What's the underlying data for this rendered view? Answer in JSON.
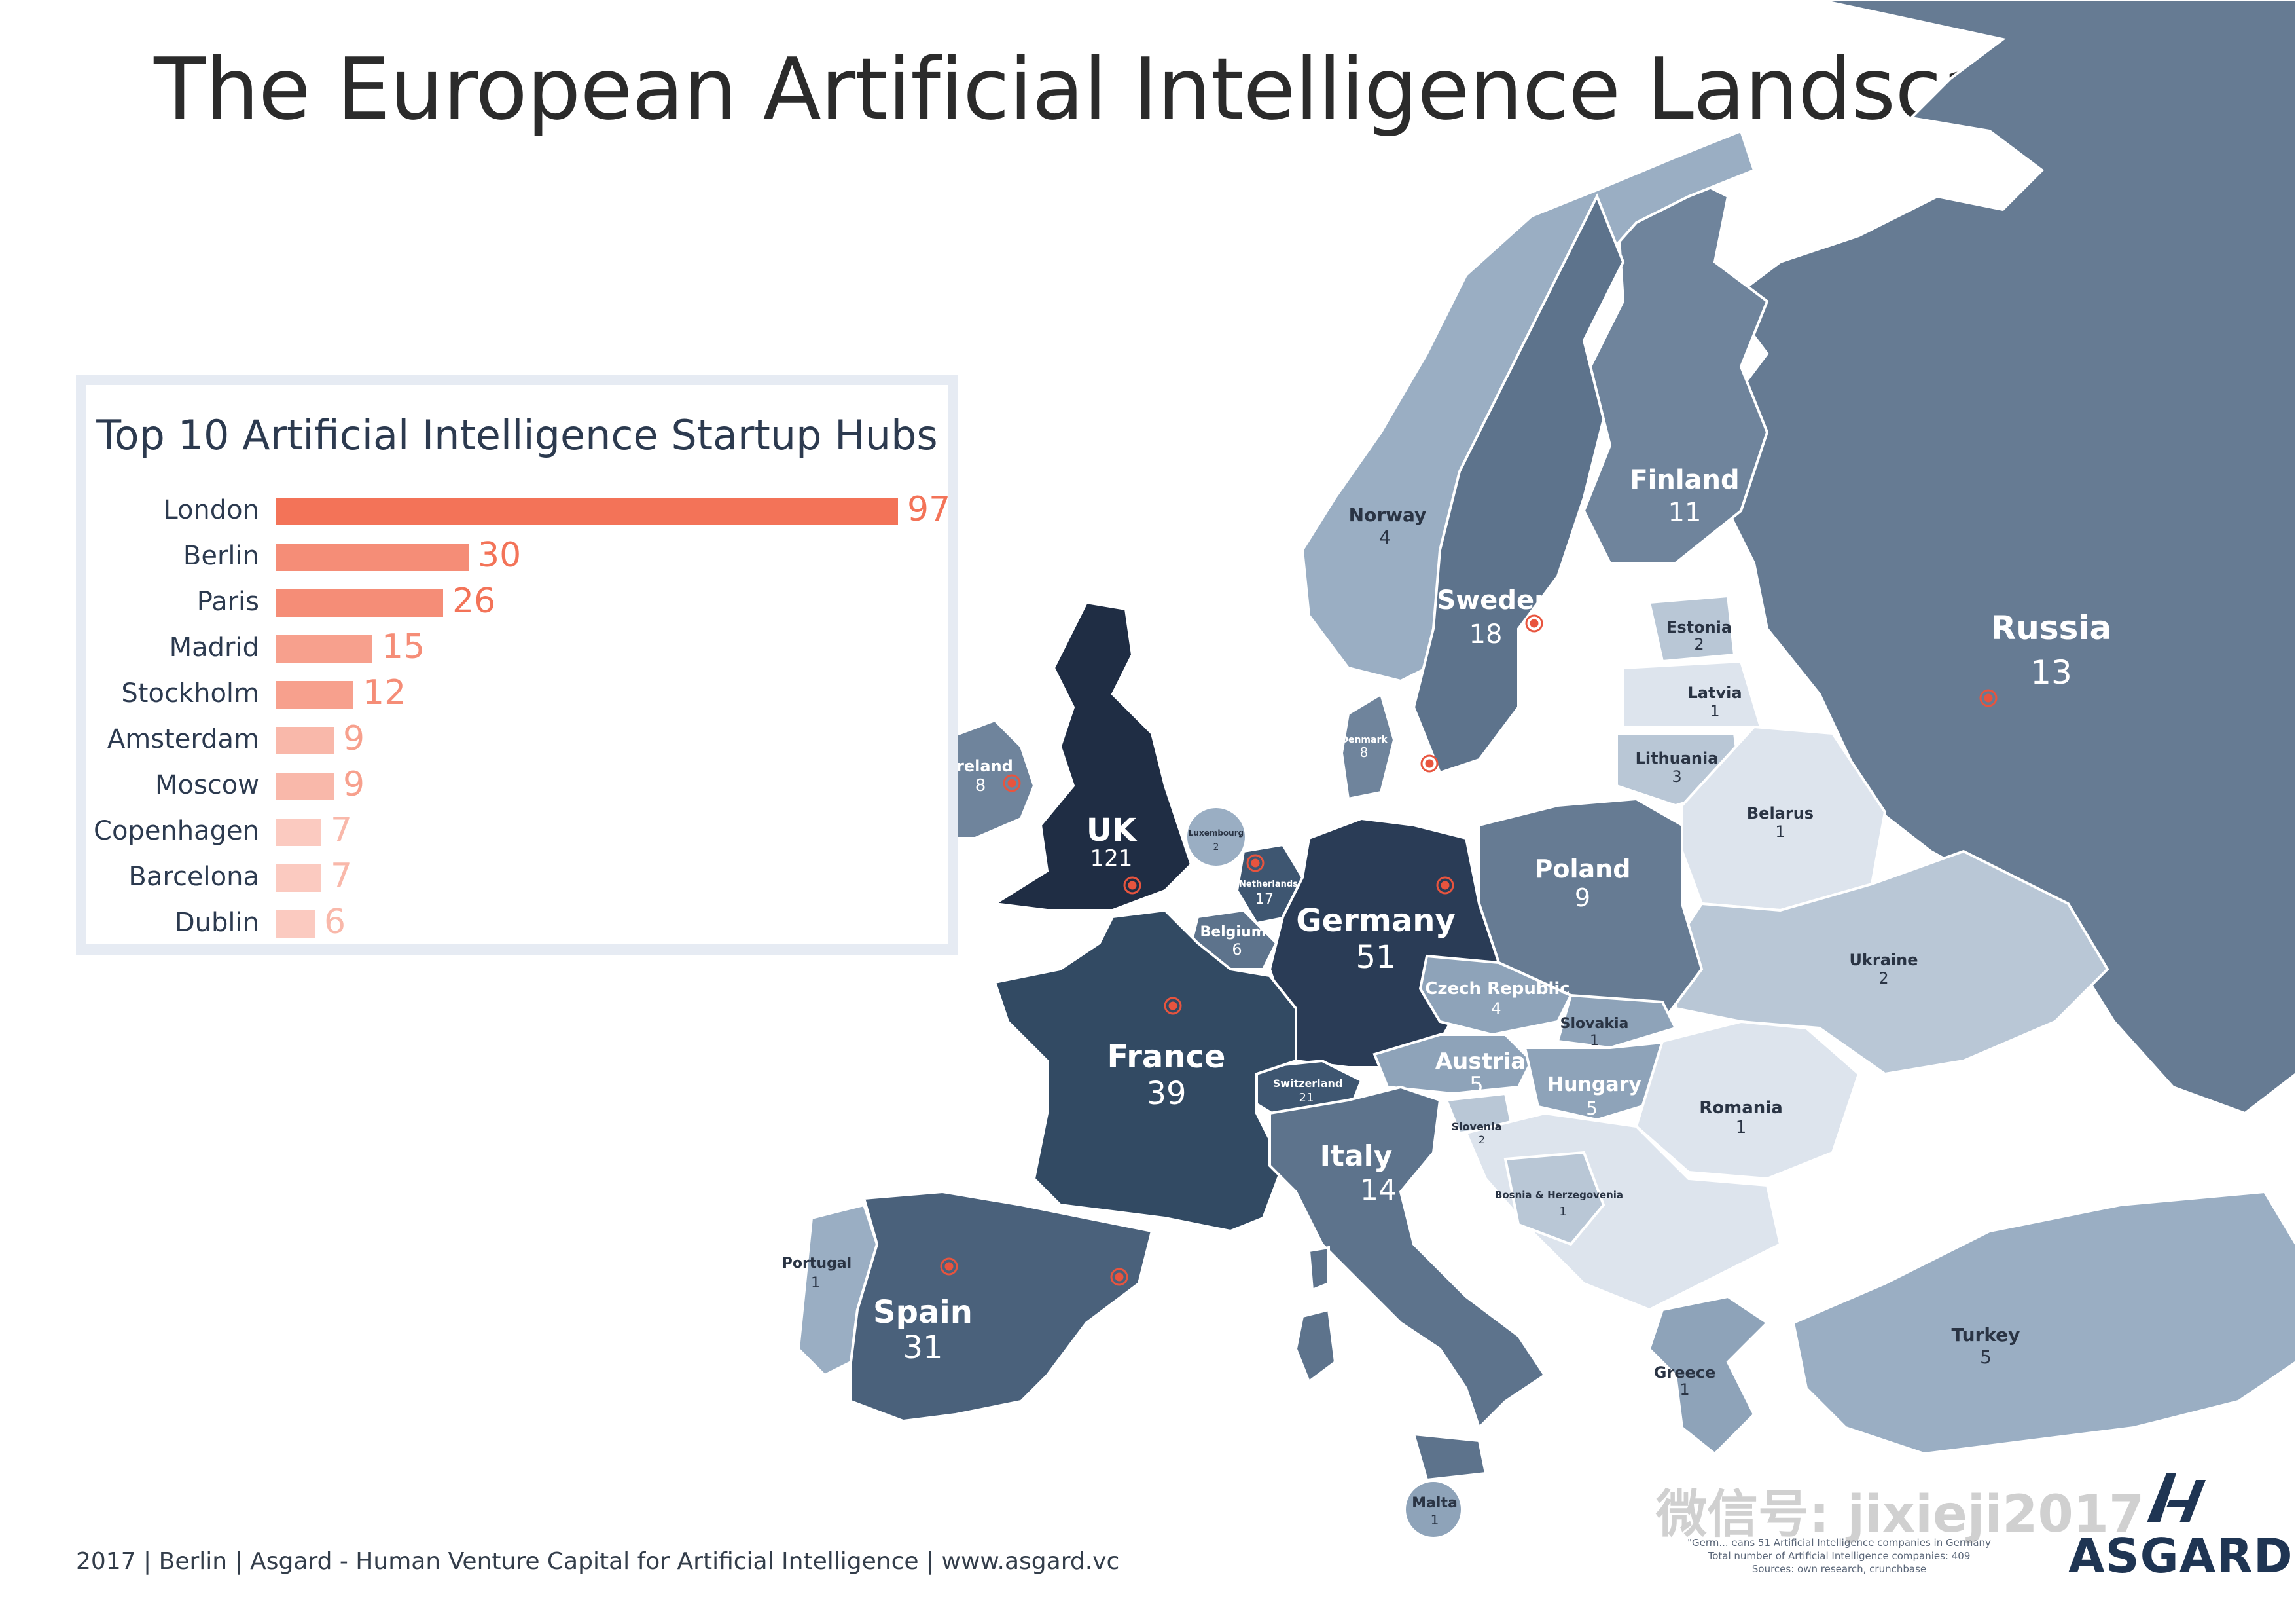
{
  "title": "The European Artificial Intelligence Landscape",
  "colors": {
    "darkest": "#1f2d44",
    "dark": "#324a63",
    "mid": "#5a7088",
    "light": "#8ea3b9",
    "lighter": "#b9c7d6",
    "lightest": "#dde4ed",
    "bar": "#f37358",
    "marker": "#e8543e"
  },
  "countries": [
    {
      "name": "Russia",
      "value": "13"
    },
    {
      "name": "Finland",
      "value": "11"
    },
    {
      "name": "Norway",
      "value": "4"
    },
    {
      "name": "Sweden",
      "value": "18"
    },
    {
      "name": "Estonia",
      "value": "2"
    },
    {
      "name": "Latvia",
      "value": "1"
    },
    {
      "name": "Lithuania",
      "value": "3"
    },
    {
      "name": "Belarus",
      "value": "1"
    },
    {
      "name": "Denmark",
      "value": "8"
    },
    {
      "name": "Ireland",
      "value": "8"
    },
    {
      "name": "UK",
      "value": "121"
    },
    {
      "name": "Luxembourg",
      "value": "2"
    },
    {
      "name": "Netherlands",
      "value": "17"
    },
    {
      "name": "Belgium",
      "value": "6"
    },
    {
      "name": "Germany",
      "value": "51"
    },
    {
      "name": "Poland",
      "value": "9"
    },
    {
      "name": "Ukraine",
      "value": "2"
    },
    {
      "name": "Czech Republic",
      "value": "4"
    },
    {
      "name": "Slovakia",
      "value": "1"
    },
    {
      "name": "Austria",
      "value": "5"
    },
    {
      "name": "Hungary",
      "value": "5"
    },
    {
      "name": "Romania",
      "value": "1"
    },
    {
      "name": "Switzerland",
      "value": "21"
    },
    {
      "name": "Slovenia",
      "value": "2"
    },
    {
      "name": "France",
      "value": "39"
    },
    {
      "name": "Italy",
      "value": "14"
    },
    {
      "name": "Bosnia & Herzegovenia",
      "value": "1"
    },
    {
      "name": "Portugal",
      "value": "1"
    },
    {
      "name": "Spain",
      "value": "31"
    },
    {
      "name": "Greece",
      "value": "1"
    },
    {
      "name": "Turkey",
      "value": "5"
    },
    {
      "name": "Malta",
      "value": "1"
    }
  ],
  "hubs": {
    "title": "Top 10 Artificial Intelligence Startup Hubs",
    "items": [
      {
        "city": "London",
        "value": 97
      },
      {
        "city": "Berlin",
        "value": 30
      },
      {
        "city": "Paris",
        "value": 26
      },
      {
        "city": "Madrid",
        "value": 15
      },
      {
        "city": "Stockholm",
        "value": 12
      },
      {
        "city": "Amsterdam",
        "value": 9
      },
      {
        "city": "Moscow",
        "value": 9
      },
      {
        "city": "Copenhagen",
        "value": 7
      },
      {
        "city": "Barcelona",
        "value": 7
      },
      {
        "city": "Dublin",
        "value": 6
      }
    ]
  },
  "footer": "2017 | Berlin | Asgard - Human Venture Capital for Artificial Intelligence | www.asgard.vc",
  "sources": {
    "line1": "\"Germ... eans 51 Artificial Intelligence companies in Germany",
    "line2": "Total number of Artificial Intelligence companies: 409",
    "line3": "Sources: own research, crunchbase"
  },
  "logo": "ASGARD",
  "watermark": "微信号: jixieji2017"
}
